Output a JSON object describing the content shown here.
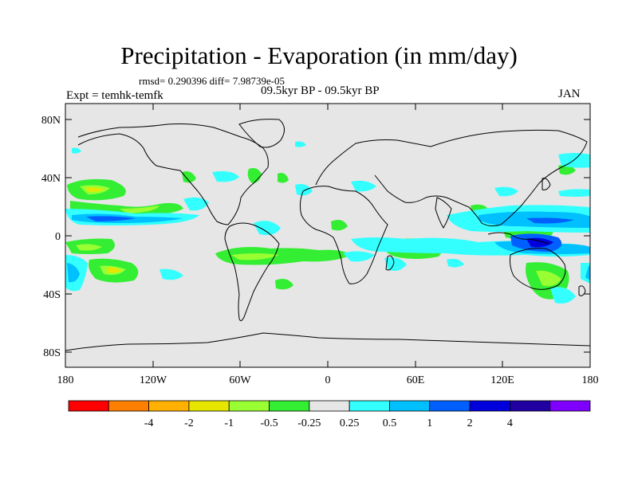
{
  "title": "Precipitation - Evaporation (in mm/day)",
  "stats": "rmsd= 0.290396 diff= 7.98739e-05",
  "expt": "Expt = temhk-temfk",
  "period": "09.5kyr BP - 09.5kyr BP",
  "month": "JAN",
  "lat_labels": [
    "80N",
    "40N",
    "0",
    "40S",
    "80S"
  ],
  "lon_labels": [
    "180",
    "120W",
    "60W",
    "0",
    "60E",
    "120E",
    "180"
  ],
  "colorbar": {
    "colors": [
      "#ff0000",
      "#ff8000",
      "#ffb000",
      "#e6e600",
      "#99ff33",
      "#33ee33",
      "#e6e6e6",
      "#33ffff",
      "#00c0ff",
      "#0060ff",
      "#0000dd",
      "#2000a0",
      "#8000ff"
    ],
    "labels": [
      "-4",
      "-2",
      "-1",
      "-0.5",
      "-0.25",
      "0.25",
      "0.5",
      "1",
      "2",
      "4"
    ]
  },
  "colors": {
    "background": "#e6e6e6",
    "coast": "#000000"
  }
}
